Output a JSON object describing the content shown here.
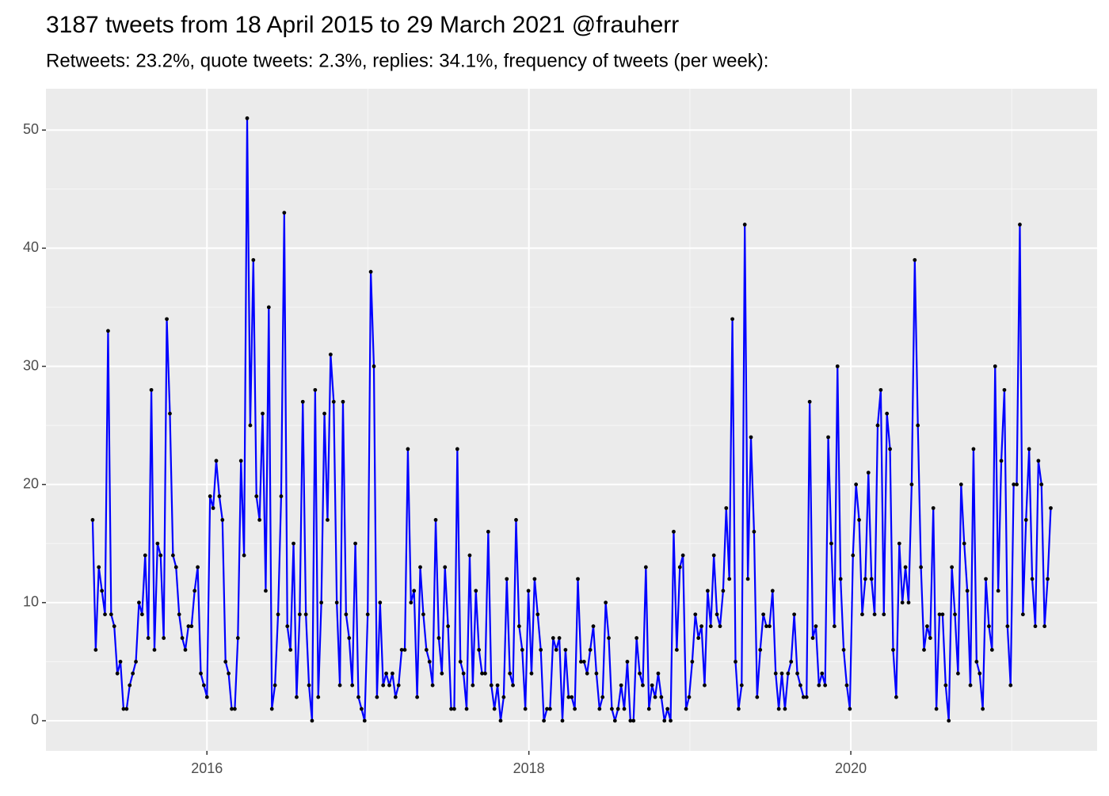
{
  "chart_data": {
    "type": "line",
    "title": "3187 tweets from 18 April 2015 to 29 March 2021 @frauherr",
    "subtitle": "Retweets: 23.2%, quote tweets: 2.3%, replies: 34.1%, frequency of tweets (per week):",
    "x": [
      2015.29,
      2015.3092,
      2015.3284,
      2015.3476,
      2015.3668,
      2015.386,
      2015.4052,
      2015.4244,
      2015.4436,
      2015.4628,
      2015.482,
      2015.5012,
      2015.5204,
      2015.5396,
      2015.5588,
      2015.578,
      2015.5972,
      2015.6164,
      2015.6356,
      2015.6548,
      2015.674,
      2015.6932,
      2015.7124,
      2015.7316,
      2015.7508,
      2015.77,
      2015.7892,
      2015.8084,
      2015.8276,
      2015.8468,
      2015.866,
      2015.8852,
      2015.9044,
      2015.9236,
      2015.9428,
      2015.962,
      2015.9812,
      2016.0004,
      2016.0196,
      2016.0388,
      2016.058,
      2016.0772,
      2016.0964,
      2016.1156,
      2016.1348,
      2016.154,
      2016.1732,
      2016.1924,
      2016.2116,
      2016.2308,
      2016.25,
      2016.2692,
      2016.2884,
      2016.3076,
      2016.3268,
      2016.346,
      2016.3652,
      2016.3844,
      2016.4036,
      2016.4228,
      2016.442,
      2016.4612,
      2016.4804,
      2016.4996,
      2016.5188,
      2016.538,
      2016.5572,
      2016.5764,
      2016.5956,
      2016.6148,
      2016.634,
      2016.6532,
      2016.6724,
      2016.6916,
      2016.7108,
      2016.73,
      2016.7492,
      2016.7684,
      2016.7876,
      2016.8068,
      2016.826,
      2016.8452,
      2016.8644,
      2016.8836,
      2016.9028,
      2016.922,
      2016.9412,
      2016.9604,
      2016.9796,
      2016.9988,
      2017.018,
      2017.0372,
      2017.0564,
      2017.0756,
      2017.0948,
      2017.114,
      2017.1332,
      2017.1524,
      2017.1716,
      2017.1908,
      2017.21,
      2017.2292,
      2017.2484,
      2017.2676,
      2017.2868,
      2017.306,
      2017.3252,
      2017.3444,
      2017.3636,
      2017.3828,
      2017.402,
      2017.4212,
      2017.4404,
      2017.4596,
      2017.4788,
      2017.498,
      2017.5172,
      2017.5364,
      2017.5556,
      2017.5748,
      2017.594,
      2017.6132,
      2017.6324,
      2017.6516,
      2017.6708,
      2017.69,
      2017.7092,
      2017.7284,
      2017.7476,
      2017.7668,
      2017.786,
      2017.8052,
      2017.8244,
      2017.8436,
      2017.8628,
      2017.882,
      2017.9012,
      2017.9204,
      2017.9396,
      2017.9588,
      2017.978,
      2017.9972,
      2018.0164,
      2018.0356,
      2018.0548,
      2018.074,
      2018.0932,
      2018.1124,
      2018.1316,
      2018.1508,
      2018.17,
      2018.1892,
      2018.2084,
      2018.2276,
      2018.2468,
      2018.266,
      2018.2852,
      2018.3044,
      2018.3236,
      2018.3428,
      2018.362,
      2018.3812,
      2018.4004,
      2018.4196,
      2018.4388,
      2018.458,
      2018.4772,
      2018.4964,
      2018.5156,
      2018.5348,
      2018.554,
      2018.5732,
      2018.5924,
      2018.6116,
      2018.6308,
      2018.65,
      2018.6692,
      2018.6884,
      2018.7076,
      2018.7268,
      2018.746,
      2018.7652,
      2018.7844,
      2018.8036,
      2018.8228,
      2018.842,
      2018.8612,
      2018.8804,
      2018.8996,
      2018.9188,
      2018.938,
      2018.9572,
      2018.9764,
      2018.9956,
      2019.0148,
      2019.034,
      2019.0532,
      2019.0724,
      2019.0916,
      2019.1108,
      2019.13,
      2019.1492,
      2019.1684,
      2019.1876,
      2019.2068,
      2019.226,
      2019.2452,
      2019.2644,
      2019.2836,
      2019.3028,
      2019.322,
      2019.3412,
      2019.3604,
      2019.3796,
      2019.3988,
      2019.418,
      2019.4372,
      2019.4564,
      2019.4756,
      2019.4948,
      2019.514,
      2019.5332,
      2019.5524,
      2019.5716,
      2019.5908,
      2019.61,
      2019.6292,
      2019.6484,
      2019.6676,
      2019.6868,
      2019.706,
      2019.7252,
      2019.7444,
      2019.7636,
      2019.7828,
      2019.802,
      2019.8212,
      2019.8404,
      2019.8596,
      2019.8788,
      2019.898,
      2019.9172,
      2019.9364,
      2019.9556,
      2019.9748,
      2019.994,
      2020.0132,
      2020.0324,
      2020.0516,
      2020.0708,
      2020.09,
      2020.1092,
      2020.1284,
      2020.1476,
      2020.1668,
      2020.186,
      2020.2052,
      2020.2244,
      2020.2436,
      2020.2628,
      2020.282,
      2020.3012,
      2020.3204,
      2020.3396,
      2020.3588,
      2020.378,
      2020.3972,
      2020.4164,
      2020.4356,
      2020.4548,
      2020.474,
      2020.4932,
      2020.5124,
      2020.5316,
      2020.5508,
      2020.57,
      2020.5892,
      2020.6084,
      2020.6276,
      2020.6468,
      2020.666,
      2020.6852,
      2020.7044,
      2020.7236,
      2020.7428,
      2020.762,
      2020.7812,
      2020.8004,
      2020.8196,
      2020.8388,
      2020.858,
      2020.8772,
      2020.8964,
      2020.9156,
      2020.9348,
      2020.954,
      2020.9732,
      2020.9924,
      2021.0116,
      2021.0308,
      2021.05,
      2021.0692,
      2021.0884,
      2021.1076,
      2021.1268,
      2021.146,
      2021.1652,
      2021.1844,
      2021.2036,
      2021.2228,
      2021.242
    ],
    "values": [
      17,
      6,
      13,
      11,
      9,
      33,
      9,
      8,
      4,
      5,
      1,
      1,
      3,
      4,
      5,
      10,
      9,
      14,
      7,
      28,
      6,
      15,
      14,
      7,
      34,
      26,
      14,
      13,
      9,
      7,
      6,
      8,
      8,
      11,
      13,
      4,
      3,
      2,
      19,
      18,
      22,
      19,
      17,
      5,
      4,
      1,
      1,
      7,
      22,
      14,
      51,
      25,
      39,
      19,
      17,
      26,
      11,
      35,
      1,
      3,
      9,
      19,
      43,
      8,
      6,
      15,
      2,
      9,
      27,
      9,
      3,
      0,
      28,
      2,
      10,
      26,
      17,
      31,
      27,
      10,
      3,
      27,
      9,
      7,
      3,
      15,
      2,
      1,
      0,
      9,
      38,
      30,
      2,
      10,
      3,
      4,
      3,
      4,
      2,
      3,
      6,
      6,
      23,
      10,
      11,
      2,
      13,
      9,
      6,
      5,
      3,
      17,
      7,
      4,
      13,
      8,
      1,
      1,
      23,
      5,
      4,
      1,
      14,
      3,
      11,
      6,
      4,
      4,
      16,
      3,
      1,
      3,
      0,
      2,
      12,
      4,
      3,
      17,
      8,
      6,
      1,
      11,
      4,
      12,
      9,
      6,
      0,
      1,
      1,
      7,
      6,
      7,
      0,
      6,
      2,
      2,
      1,
      12,
      5,
      5,
      4,
      6,
      8,
      4,
      1,
      2,
      10,
      7,
      1,
      0,
      1,
      3,
      1,
      5,
      0,
      0,
      7,
      4,
      3,
      13,
      1,
      3,
      2,
      4,
      2,
      0,
      1,
      0,
      16,
      6,
      13,
      14,
      1,
      2,
      5,
      9,
      7,
      8,
      3,
      11,
      8,
      14,
      9,
      8,
      11,
      18,
      12,
      34,
      5,
      1,
      3,
      42,
      12,
      24,
      16,
      2,
      6,
      9,
      8,
      8,
      11,
      4,
      1,
      4,
      1,
      4,
      5,
      9,
      4,
      3,
      2,
      2,
      27,
      7,
      8,
      3,
      4,
      3,
      24,
      15,
      8,
      30,
      12,
      6,
      3,
      1,
      14,
      20,
      17,
      9,
      12,
      21,
      12,
      9,
      25,
      28,
      9,
      26,
      23,
      6,
      2,
      15,
      10,
      13,
      10,
      20,
      39,
      25,
      13,
      6,
      8,
      7,
      18,
      1,
      9,
      9,
      3,
      0,
      13,
      9,
      4,
      20,
      15,
      11,
      3,
      23,
      5,
      4,
      1,
      12,
      8,
      6,
      30,
      11,
      22,
      28,
      8,
      3,
      20,
      20,
      42,
      9,
      17,
      23,
      12,
      8,
      22,
      20,
      8,
      12,
      18
    ],
    "line_color": "#0000ff",
    "point_color": "#000000",
    "xlim": [
      2015.0,
      2021.53
    ],
    "xticks": [
      2016,
      2018,
      2020
    ],
    "x_minor_ticks": [
      2017,
      2019,
      2021
    ],
    "ylim": [
      -2.55,
      53.5
    ],
    "yticks": [
      0,
      10,
      20,
      30,
      40,
      50
    ],
    "y_minor_ticks": [
      5,
      15,
      25,
      35,
      45
    ],
    "grid": true
  }
}
